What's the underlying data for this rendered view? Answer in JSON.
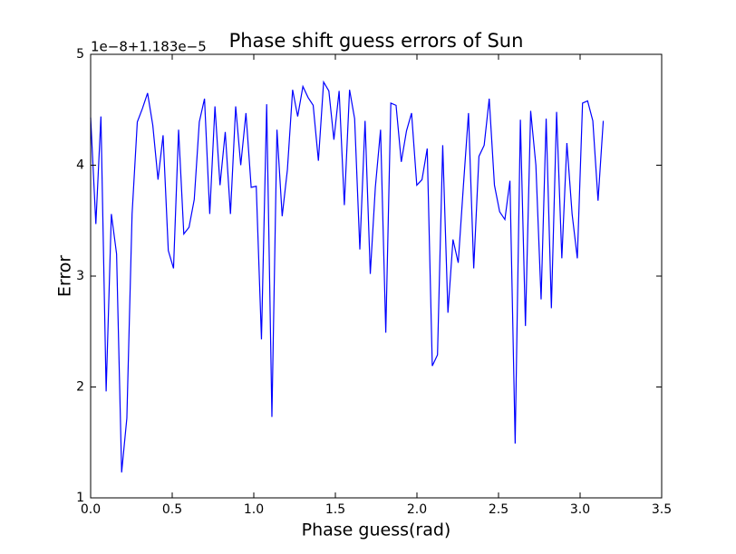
{
  "chart_data": {
    "type": "line",
    "title": "Phase shift guess errors of Sun",
    "x_label": "Phase guess(rad)",
    "y_label": "Error",
    "y_offset_text": "1e−8+1.183e−5",
    "x": [
      0,
      0.032,
      0.063,
      0.095,
      0.127,
      0.159,
      0.19,
      0.222,
      0.254,
      0.286,
      0.317,
      0.349,
      0.381,
      0.413,
      0.444,
      0.476,
      0.508,
      0.539,
      0.571,
      0.603,
      0.635,
      0.666,
      0.698,
      0.73,
      0.762,
      0.793,
      0.825,
      0.857,
      0.889,
      0.92,
      0.952,
      0.984,
      1.015,
      1.047,
      1.079,
      1.111,
      1.142,
      1.174,
      1.206,
      1.238,
      1.269,
      1.301,
      1.333,
      1.364,
      1.396,
      1.428,
      1.46,
      1.491,
      1.523,
      1.555,
      1.587,
      1.618,
      1.65,
      1.682,
      1.714,
      1.745,
      1.777,
      1.809,
      1.84,
      1.872,
      1.904,
      1.936,
      1.967,
      1.999,
      2.031,
      2.063,
      2.094,
      2.126,
      2.158,
      2.19,
      2.221,
      2.253,
      2.285,
      2.316,
      2.348,
      2.38,
      2.412,
      2.443,
      2.475,
      2.507,
      2.539,
      2.57,
      2.602,
      2.634,
      2.665,
      2.697,
      2.729,
      2.761,
      2.792,
      2.824,
      2.856,
      2.888,
      2.919,
      2.951,
      2.983,
      3.015,
      3.046,
      3.078,
      3.11,
      3.142
    ],
    "series": [
      {
        "color": "#0000ff",
        "values": [
          4.43,
          3.47,
          4.44,
          1.96,
          3.56,
          3.2,
          1.23,
          1.72,
          3.56,
          4.39,
          4.51,
          4.65,
          4.36,
          3.87,
          4.27,
          3.23,
          3.07,
          4.32,
          3.38,
          3.44,
          3.69,
          4.39,
          4.6,
          3.56,
          4.53,
          3.82,
          4.3,
          3.56,
          4.53,
          4.0,
          4.47,
          3.8,
          3.81,
          2.43,
          4.55,
          1.73,
          4.32,
          3.54,
          3.96,
          4.68,
          4.44,
          4.71,
          4.61,
          4.54,
          4.04,
          4.75,
          4.67,
          4.23,
          4.67,
          3.64,
          4.68,
          4.42,
          3.24,
          4.4,
          3.02,
          3.8,
          4.32,
          2.49,
          4.56,
          4.54,
          4.03,
          4.31,
          4.47,
          3.82,
          3.87,
          4.15,
          2.19,
          2.29,
          4.18,
          2.67,
          3.33,
          3.12,
          3.82,
          4.47,
          3.07,
          4.08,
          4.18,
          4.6,
          3.82,
          3.58,
          3.51,
          3.86,
          1.49,
          4.41,
          2.55,
          4.49,
          4.0,
          2.79,
          4.42,
          2.71,
          4.48,
          3.16,
          4.2,
          3.56,
          3.16,
          4.56,
          4.58,
          4.4,
          3.68,
          4.4
        ]
      }
    ],
    "xlim": [
      0,
      3.5
    ],
    "xticks": [
      {
        "value": 0,
        "label": "0.0"
      },
      0.5,
      {
        "value": 1,
        "label": "1.0"
      },
      1.5,
      {
        "value": 2,
        "label": "2.0"
      },
      2.5,
      {
        "value": 3,
        "label": "3.0"
      },
      3.5
    ],
    "ylim": [
      1,
      5
    ],
    "yticks": [
      1,
      2,
      3,
      4,
      5
    ],
    "grid": false
  }
}
